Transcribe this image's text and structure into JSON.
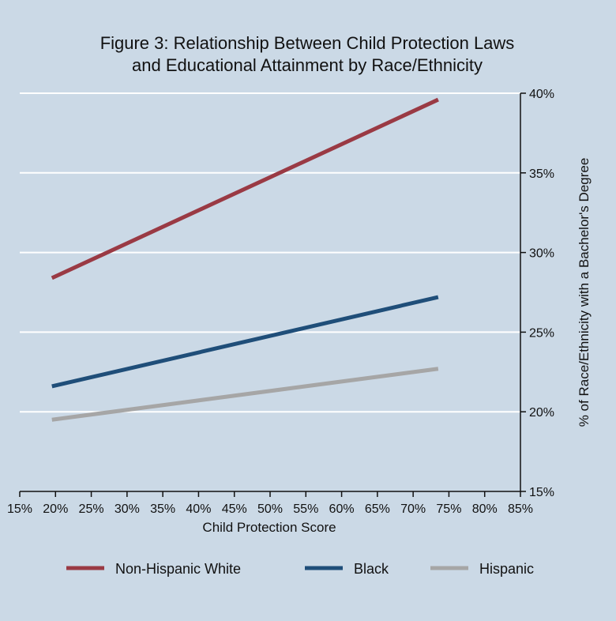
{
  "chart_data": {
    "type": "line",
    "title_lines": [
      "Figure 3: Relationship Between Child Protection Laws",
      "and Educational Attainment by Race/Ethnicity"
    ],
    "xlabel": "Child Protection Score",
    "ylabel": "% of Race/Ethnicity with a Bachelor's Degree",
    "xlim": [
      15,
      85
    ],
    "ylim": [
      15,
      40
    ],
    "x_ticks": [
      15,
      20,
      25,
      30,
      35,
      40,
      45,
      50,
      55,
      60,
      65,
      70,
      75,
      80,
      85
    ],
    "x_tick_labels": [
      "15%",
      "20%",
      "25%",
      "30%",
      "35%",
      "40%",
      "45%",
      "50%",
      "55%",
      "60%",
      "65%",
      "70%",
      "75%",
      "80%",
      "85%"
    ],
    "y_ticks": [
      15,
      20,
      25,
      30,
      35,
      40
    ],
    "y_tick_labels": [
      "15%",
      "20%",
      "25%",
      "30%",
      "35%",
      "40%"
    ],
    "grid": "horizontal",
    "legend_position": "bottom",
    "series": [
      {
        "name": "Non-Hispanic White",
        "color": "#9a3a44",
        "x": [
          19.5,
          73.5
        ],
        "y": [
          28.4,
          39.6
        ]
      },
      {
        "name": "Black",
        "color": "#1f4e79",
        "x": [
          19.5,
          73.5
        ],
        "y": [
          21.6,
          27.2
        ]
      },
      {
        "name": "Hispanic",
        "color": "#a6a6a6",
        "x": [
          19.5,
          73.5
        ],
        "y": [
          19.5,
          22.7
        ]
      }
    ],
    "colors": {
      "background": "#cbd9e6",
      "grid": "#ffffff",
      "axis": "#111111"
    }
  }
}
